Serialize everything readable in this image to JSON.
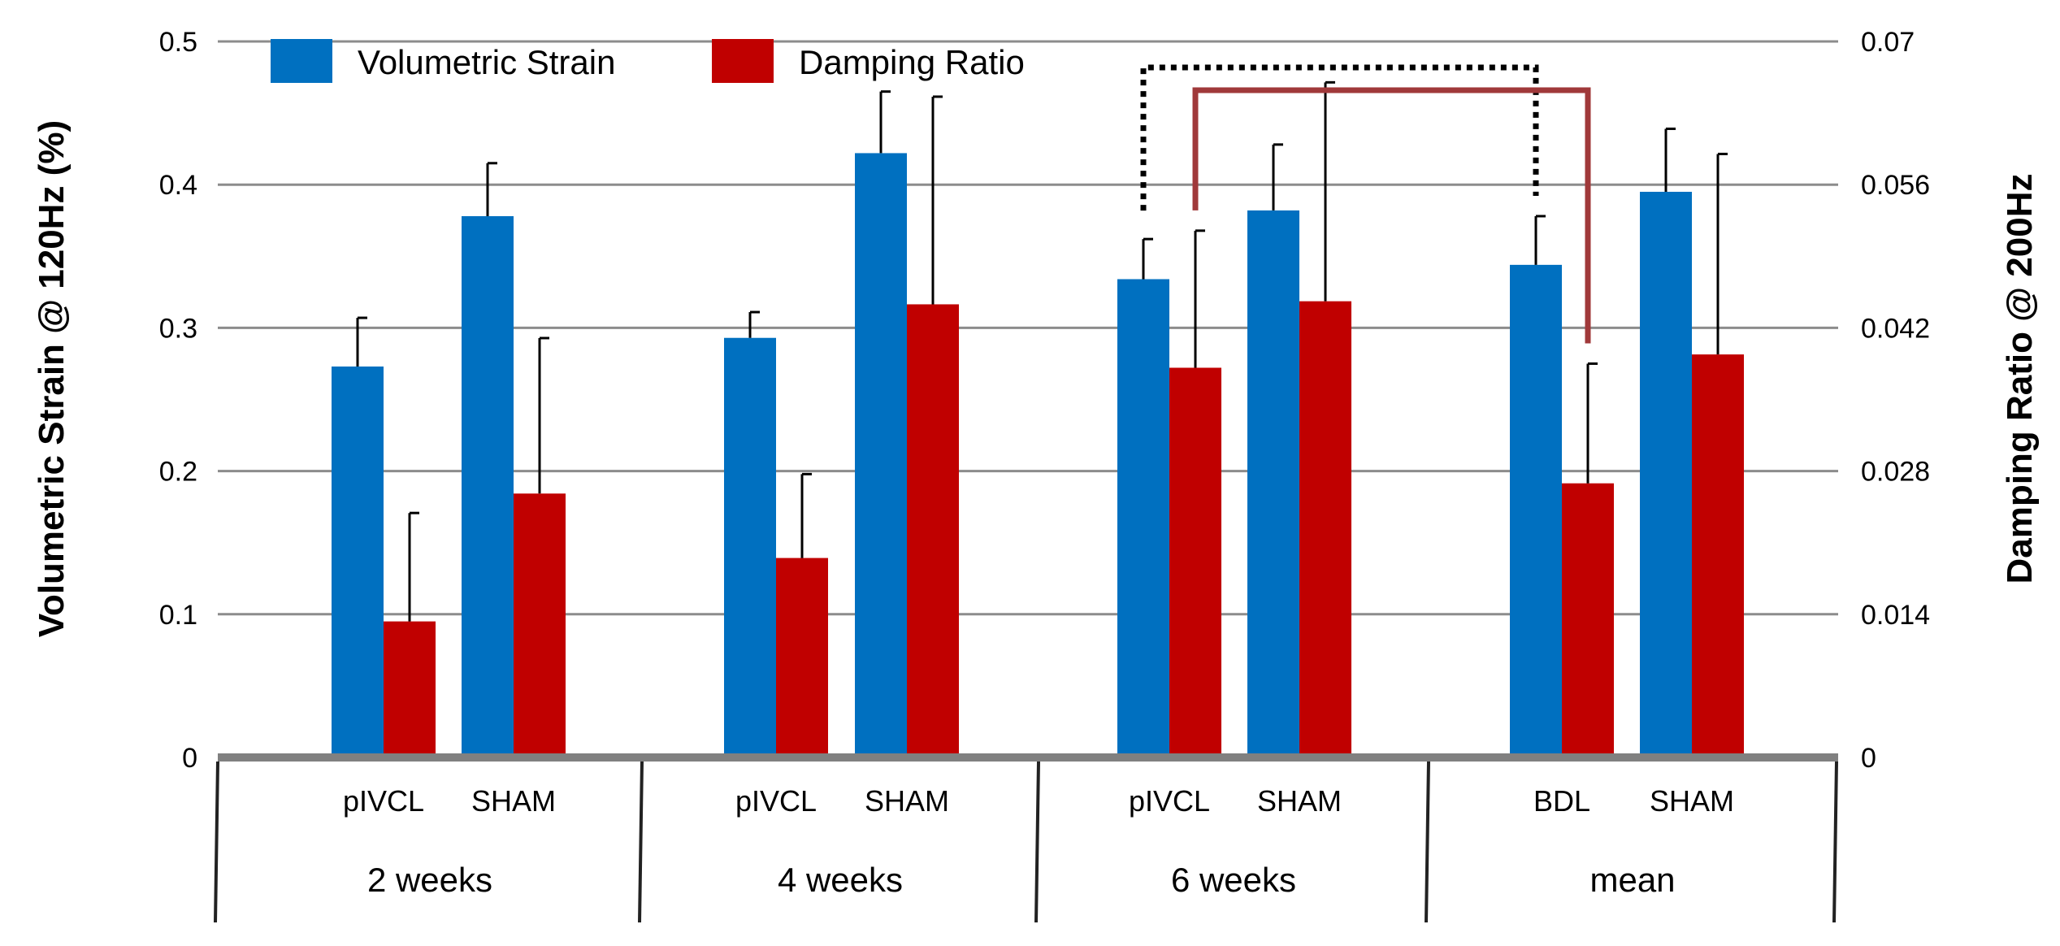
{
  "chart_data": {
    "type": "bar",
    "title": "",
    "legend_position": "top-left",
    "grid": true,
    "y_left": {
      "label": "Volumetric Strain @ 120Hz (%)",
      "lim": [
        0,
        0.5
      ],
      "ticks": [
        "0",
        "0.1",
        "0.2",
        "0.3",
        "0.4",
        "0.5"
      ]
    },
    "y_right": {
      "label": "Damping Ratio @ 200Hz",
      "lim": [
        0,
        0.07
      ],
      "ticks": [
        "0",
        "0.014",
        "0.028",
        "0.042",
        "0.056",
        "0.07"
      ]
    },
    "groups": [
      {
        "label": "2 weeks",
        "categories": [
          "pIVCL",
          "SHAM"
        ]
      },
      {
        "label": "4 weeks",
        "categories": [
          "pIVCL",
          "SHAM"
        ]
      },
      {
        "label": "6 weeks",
        "categories": [
          "pIVCL",
          "SHAM"
        ]
      },
      {
        "label": "mean",
        "categories": [
          "BDL",
          "SHAM"
        ]
      }
    ],
    "series": [
      {
        "name": "Volumetric Strain",
        "axis": "left",
        "color": "#0070C0",
        "values": [
          0.273,
          0.378,
          0.293,
          0.422,
          0.334,
          0.382,
          0.344,
          0.395
        ],
        "errors": [
          0.034,
          0.037,
          0.018,
          0.043,
          0.028,
          0.046,
          0.034,
          0.044
        ]
      },
      {
        "name": "Damping Ratio",
        "axis": "right",
        "color": "#C00000",
        "values": [
          0.0133,
          0.0258,
          0.0195,
          0.0443,
          0.0381,
          0.0446,
          0.0268,
          0.0394
        ],
        "errors": [
          0.0106,
          0.0152,
          0.0082,
          0.0203,
          0.0134,
          0.0214,
          0.0117,
          0.0196
        ]
      }
    ],
    "significance_brackets": [
      {
        "from_bar": "6 weeks pIVCL Volumetric Strain",
        "to_bar": "mean BDL Volumetric Strain",
        "style": "dotted",
        "color": "#000000"
      },
      {
        "from_bar": "6 weeks pIVCL Damping Ratio",
        "to_bar": "mean BDL Damping Ratio",
        "style": "solid",
        "color": "#A0393A"
      }
    ]
  }
}
